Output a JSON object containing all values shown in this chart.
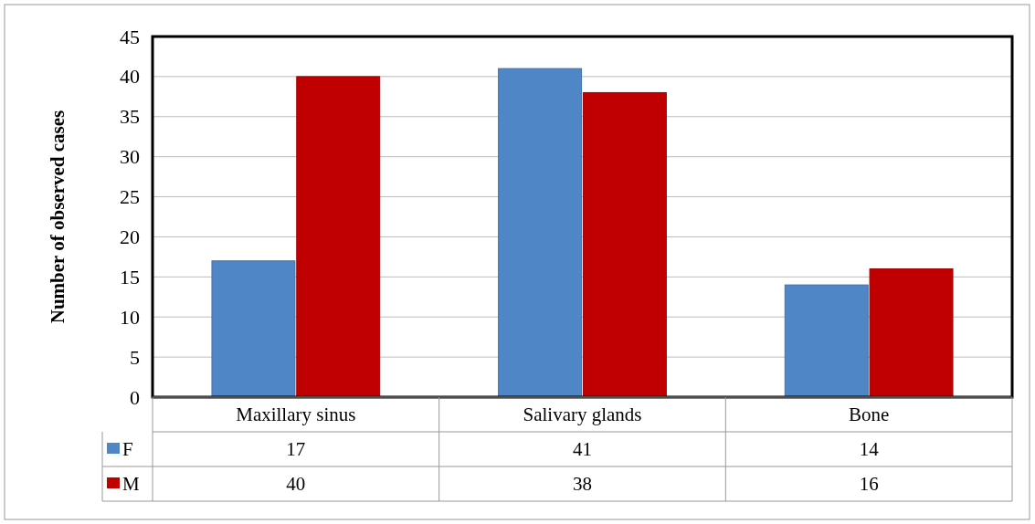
{
  "chart_data": {
    "type": "bar",
    "ylabel": "Number of observed cases",
    "categories": [
      "Maxillary sinus",
      "Salivary glands",
      "Bone"
    ],
    "series": [
      {
        "name": "F",
        "color": "#4f86c6",
        "values": [
          17,
          41,
          14
        ]
      },
      {
        "name": "M",
        "color": "#c00000",
        "values": [
          40,
          38,
          16
        ]
      }
    ],
    "ylim": [
      0,
      45
    ],
    "yticks": [
      0,
      5,
      10,
      15,
      20,
      25,
      30,
      35,
      40,
      45
    ],
    "grid": "y",
    "legend": "bottom left",
    "data_labels": true
  }
}
